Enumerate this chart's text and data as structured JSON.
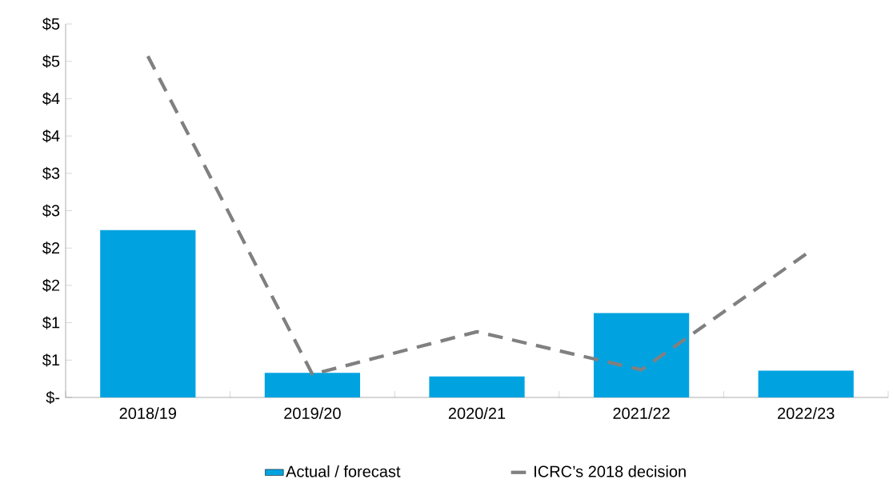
{
  "chart_data": {
    "type": "bar",
    "categories": [
      "2018/19",
      "2019/20",
      "2020/21",
      "2021/22",
      "2022/23"
    ],
    "series": [
      {
        "name": "Actual / forecast",
        "color": "#00a3e0",
        "values": [
          2.24,
          0.33,
          0.28,
          1.13,
          0.36
        ]
      },
      {
        "name": "ICRC’s 2018 decision",
        "type": "line",
        "color": "#808080",
        "line_style": "dashed",
        "values": [
          4.57,
          0.31,
          0.88,
          0.37,
          1.92
        ]
      }
    ],
    "ylim": [
      0,
      5
    ],
    "yticks": [
      {
        "value": 0,
        "label": "$-"
      },
      {
        "value": 0.5,
        "label": "$1"
      },
      {
        "value": 1,
        "label": "$1"
      },
      {
        "value": 1.5,
        "label": "$2"
      },
      {
        "value": 2,
        "label": "$2"
      },
      {
        "value": 2.5,
        "label": "$3"
      },
      {
        "value": 3,
        "label": "$3"
      },
      {
        "value": 3.5,
        "label": "$4"
      },
      {
        "value": 4,
        "label": "$4"
      },
      {
        "value": 4.5,
        "label": "$5"
      },
      {
        "value": 5,
        "label": "$5"
      }
    ],
    "grid": false,
    "legend": "bottom"
  }
}
